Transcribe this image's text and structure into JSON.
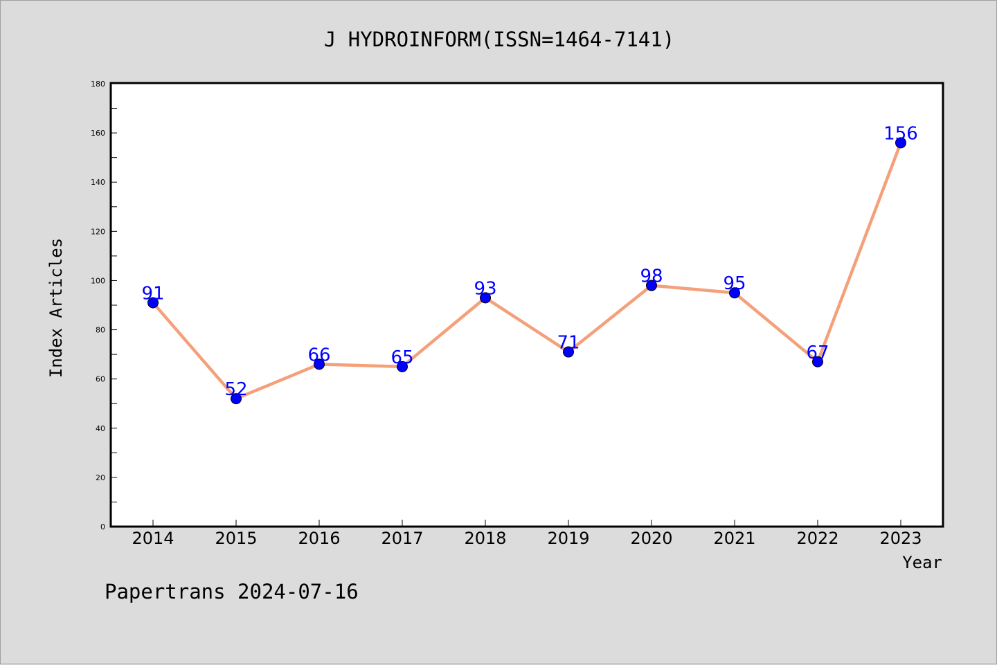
{
  "chart_data": {
    "type": "line",
    "title": "J HYDROINFORM(ISSN=1464-7141)",
    "xlabel": "Year",
    "ylabel": "Index Articles",
    "categories": [
      "2014",
      "2015",
      "2016",
      "2017",
      "2018",
      "2019",
      "2020",
      "2021",
      "2022",
      "2023"
    ],
    "series": [
      {
        "values": [
          91,
          52,
          66,
          65,
          93,
          71,
          98,
          95,
          67,
          156
        ]
      }
    ],
    "ylim": [
      0,
      180
    ],
    "yticks": [
      0,
      20,
      40,
      60,
      80,
      100,
      120,
      140,
      160,
      180
    ],
    "grid": false,
    "data_labels": true,
    "colors": {
      "line": "#f4a07a",
      "marker": "#0000ff",
      "label": "#0000ff"
    }
  },
  "footer": {
    "text": "Papertrans 2024-07-16"
  }
}
